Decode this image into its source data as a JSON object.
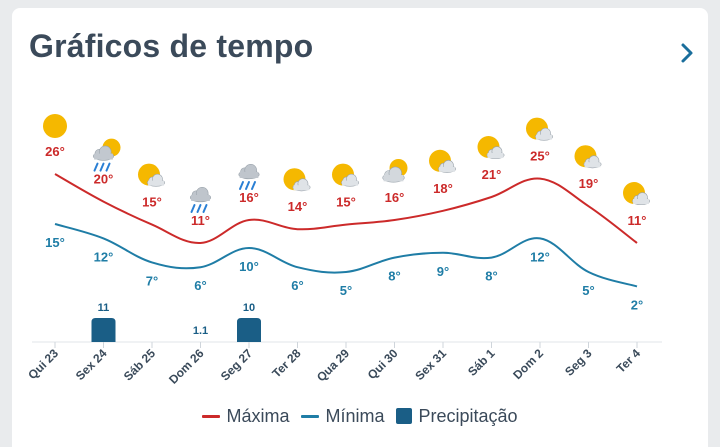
{
  "header": {
    "title": "Gráficos de tempo",
    "next_icon": "chevron-right-icon"
  },
  "colors": {
    "max": "#cc2a2a",
    "min": "#1f7da6",
    "precip": "#1a5e86",
    "sun": "#f5b800",
    "cloud": "#c9ced4"
  },
  "chart_data": {
    "type": "line",
    "categories": [
      "Qui 23",
      "Sex 24",
      "Sáb 25",
      "Dom 26",
      "Seg 27",
      "Ter 28",
      "Qua 29",
      "Qui 30",
      "Sex 31",
      "Sáb 1",
      "Dom 2",
      "Seg 3",
      "Ter 4"
    ],
    "series": [
      {
        "name": "Máxima",
        "values": [
          26,
          20,
          15,
          11,
          16,
          14,
          15,
          16,
          18,
          21,
          25,
          19,
          11
        ],
        "labels": [
          "26°",
          "20°",
          "15°",
          "11°",
          "16°",
          "14°",
          "15°",
          "16°",
          "18°",
          "21°",
          "25°",
          "19°",
          "11°"
        ]
      },
      {
        "name": "Mínima",
        "values": [
          15,
          12,
          7,
          6,
          10,
          6,
          5,
          8,
          9,
          8,
          12,
          5,
          2
        ],
        "labels": [
          "15°",
          "12°",
          "7°",
          "6°",
          "10°",
          "6°",
          "5°",
          "8°",
          "9°",
          "8°",
          "12°",
          "5°",
          "2°"
        ]
      },
      {
        "name": "Precipitação",
        "type": "bar",
        "values": [
          null,
          11,
          null,
          1.1,
          10,
          null,
          null,
          null,
          null,
          null,
          null,
          null,
          null
        ],
        "labels": [
          "",
          "11",
          "",
          "1.1",
          "10",
          "",
          "",
          "",
          "",
          "",
          "",
          "",
          ""
        ]
      }
    ],
    "icons": [
      "sun-icon",
      "rain-cloud-icon",
      "partly-cloudy-icon",
      "rain-cloud-icon",
      "rain-cloud-icon",
      "partly-cloudy-icon",
      "partly-cloudy-icon",
      "cloudy-icon",
      "partly-cloudy-icon",
      "partly-cloudy-icon",
      "partly-cloudy-icon",
      "partly-cloudy-icon",
      "partly-cloudy-icon"
    ],
    "legend": [
      "Máxima",
      "Mínima",
      "Precipitação"
    ]
  }
}
